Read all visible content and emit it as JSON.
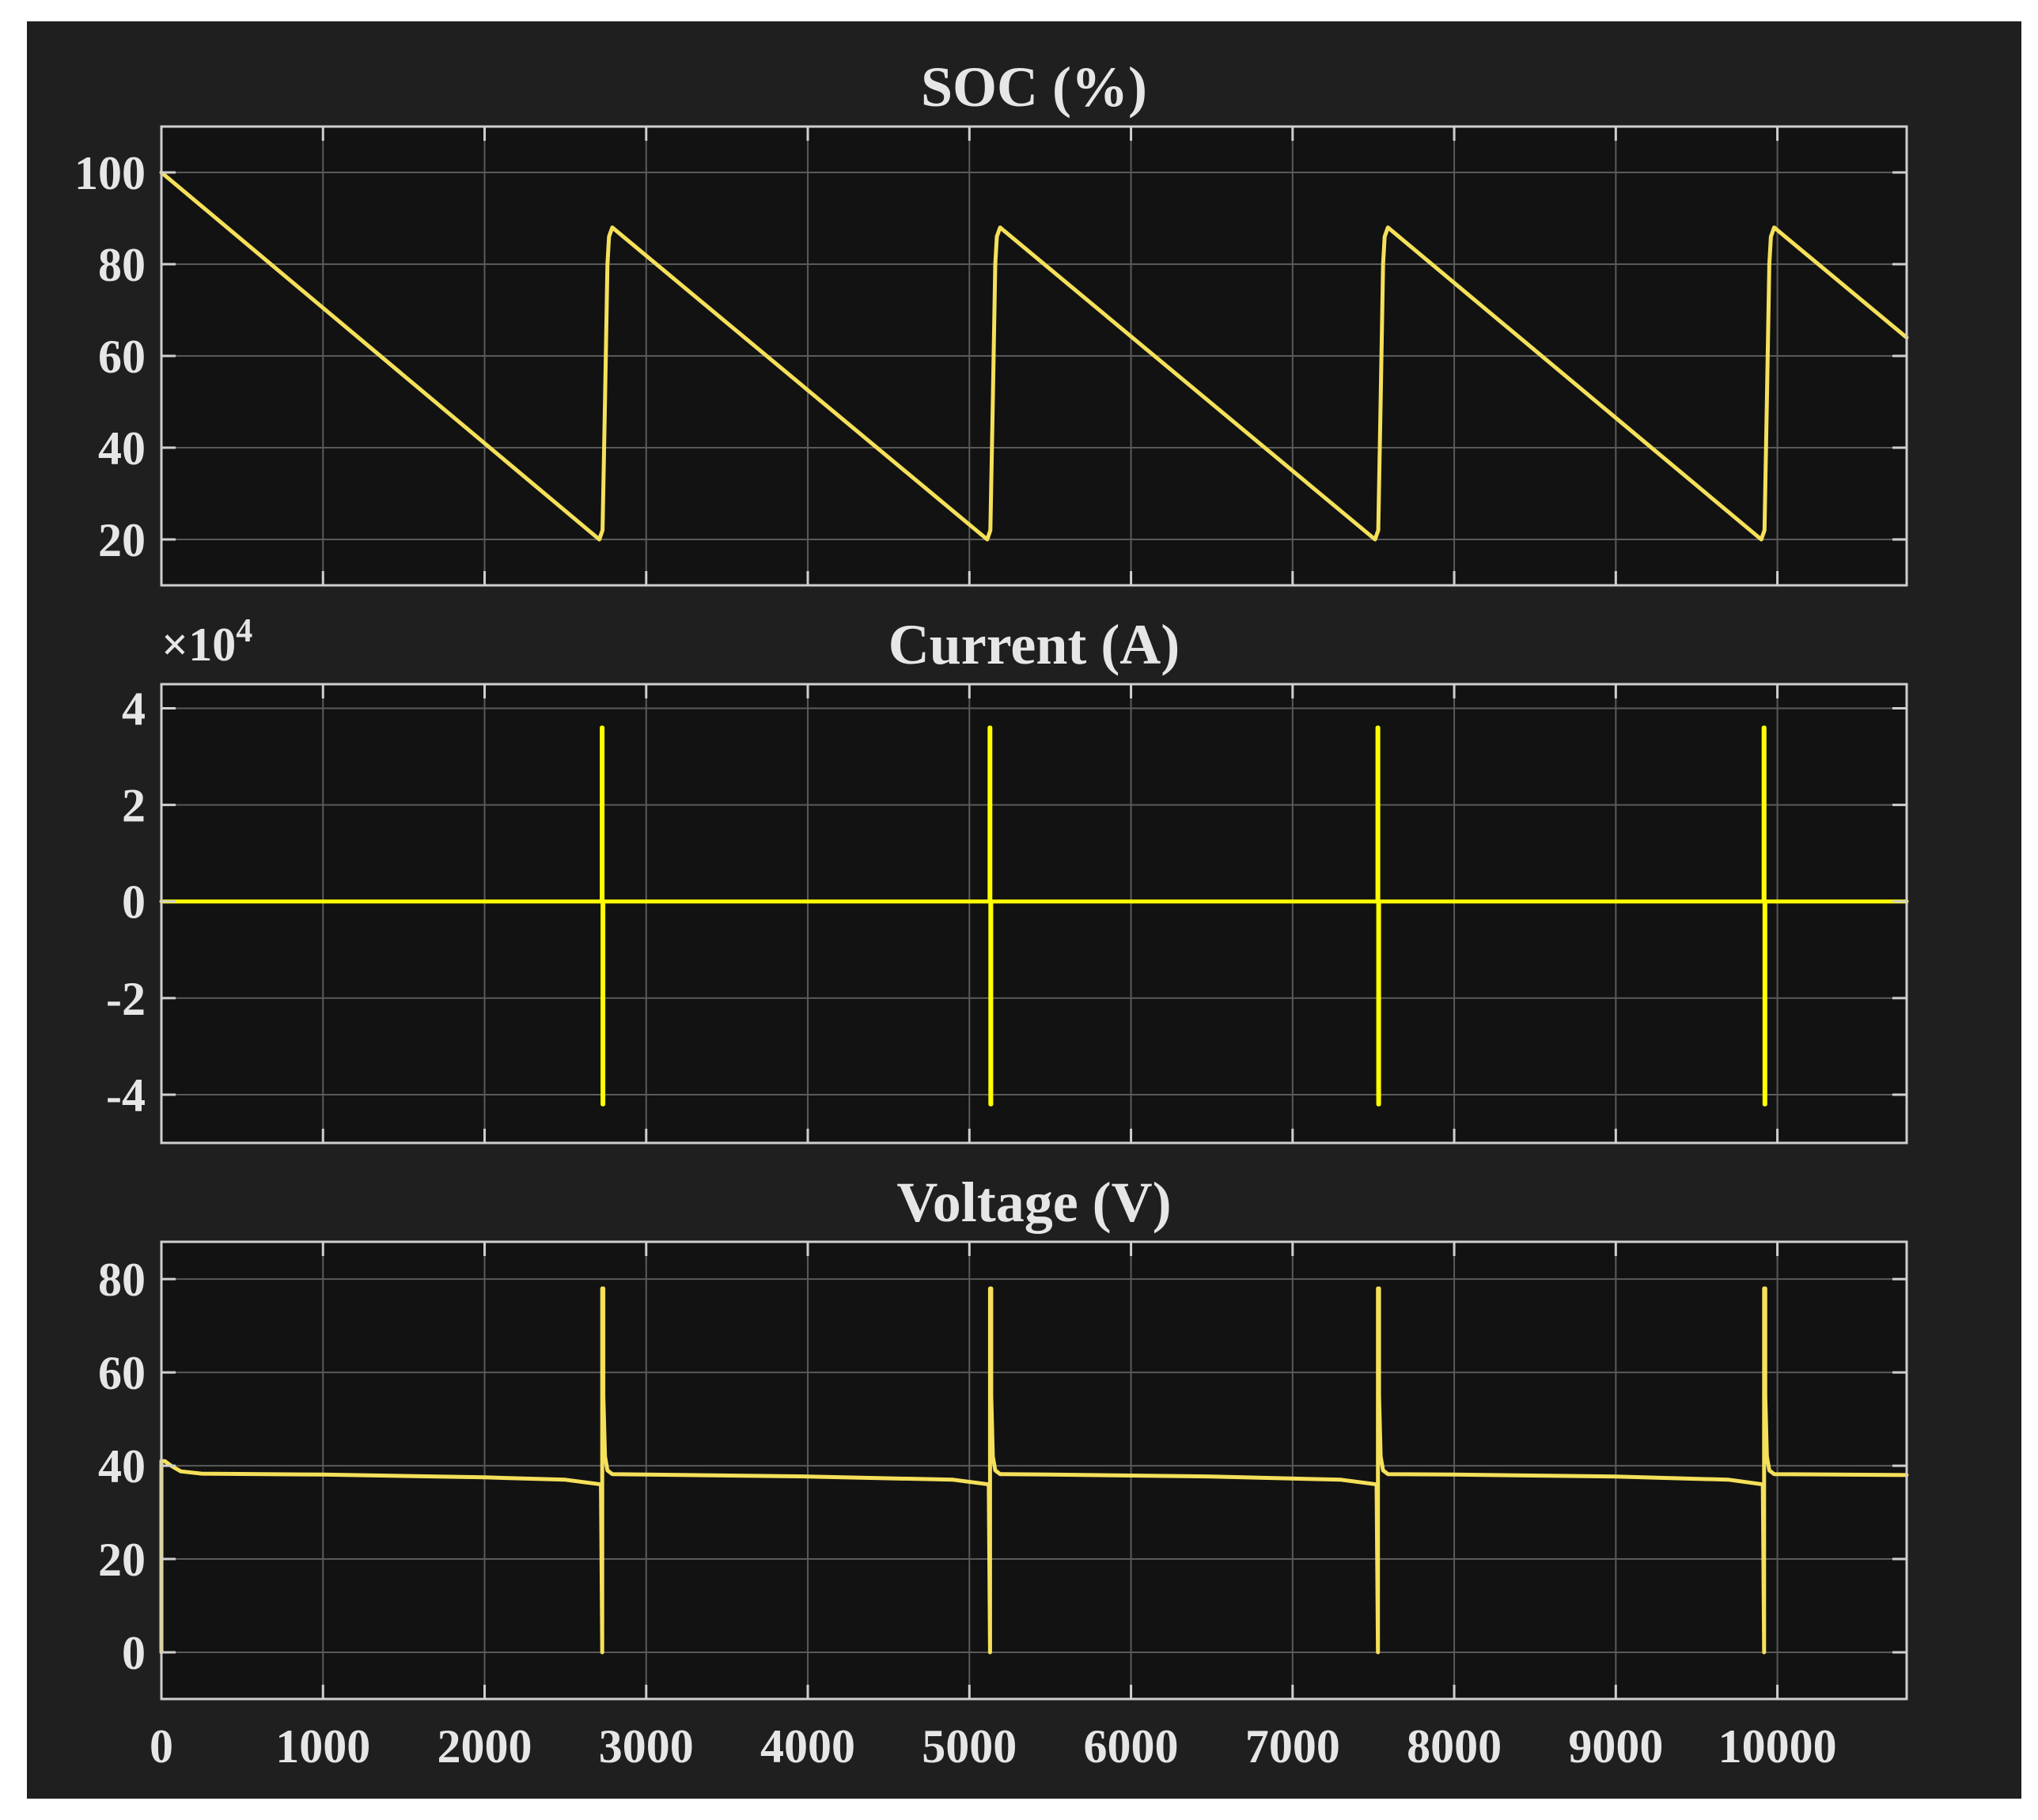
{
  "colors": {
    "figure_bg": "#1f1f1f",
    "axes_bg": "#121212",
    "grid": "#5a5a5a",
    "axis": "#cfcfcf",
    "text": "#e6e6e6",
    "soc_line": "#f5e05a",
    "current_line": "#ffff00",
    "voltage_line": "#f5e05a"
  },
  "chart_data": [
    {
      "type": "line",
      "title": "SOC (%)",
      "xlabel": "",
      "ylabel": "",
      "xlim": [
        0,
        10800
      ],
      "ylim": [
        10,
        110
      ],
      "xticks": [
        0,
        1000,
        2000,
        3000,
        4000,
        5000,
        6000,
        7000,
        8000,
        9000,
        10000
      ],
      "yticks": [
        20,
        40,
        60,
        80,
        100
      ],
      "ytick_labels": [
        "20",
        "40",
        "60",
        "80",
        "100"
      ],
      "show_xtick_labels": false,
      "grid": true,
      "series": [
        {
          "color": "#f5e05a",
          "x": [
            0,
            2710,
            2730,
            2745,
            2760,
            2770,
            2790,
            5110,
            5130,
            5145,
            5160,
            5170,
            5190,
            7510,
            7530,
            7545,
            7560,
            7570,
            7590,
            9900,
            9920,
            9935,
            9950,
            9960,
            9980,
            10800
          ],
          "y": [
            100,
            20,
            22,
            50,
            80,
            86,
            88,
            20,
            22,
            50,
            80,
            86,
            88,
            20,
            22,
            50,
            80,
            86,
            88,
            20,
            22,
            50,
            80,
            86,
            88,
            64
          ]
        }
      ]
    },
    {
      "type": "line",
      "title": "Current (A)",
      "xlabel": "",
      "ylabel": "",
      "exponent_label": "×10",
      "exponent_power": "4",
      "xlim": [
        0,
        10800
      ],
      "ylim": [
        -5,
        4.5
      ],
      "xticks": [
        0,
        1000,
        2000,
        3000,
        4000,
        5000,
        6000,
        7000,
        8000,
        9000,
        10000
      ],
      "yticks": [
        -4,
        -2,
        0,
        2,
        4
      ],
      "ytick_labels": [
        "-4",
        "-2",
        "0",
        "2",
        "4"
      ],
      "show_xtick_labels": false,
      "grid": true,
      "series": [
        {
          "color": "#ffff00",
          "x": [
            0,
            2725,
            2725,
            2730,
            2730,
            2735,
            2735,
            5125,
            5125,
            5130,
            5130,
            5135,
            5135,
            7525,
            7525,
            7530,
            7530,
            7535,
            7535,
            9915,
            9915,
            9920,
            9920,
            9925,
            9925,
            10800
          ],
          "y": [
            0,
            0,
            3.6,
            3.6,
            -4.2,
            -4.2,
            0,
            0,
            3.6,
            3.6,
            -4.2,
            -4.2,
            0,
            0,
            3.6,
            3.6,
            -4.2,
            -4.2,
            0,
            0,
            3.6,
            3.6,
            -4.2,
            -4.2,
            0,
            0
          ]
        }
      ]
    },
    {
      "type": "line",
      "title": "Voltage (V)",
      "xlabel": "",
      "ylabel": "",
      "xlim": [
        0,
        10800
      ],
      "ylim": [
        -10,
        88
      ],
      "xticks": [
        0,
        1000,
        2000,
        3000,
        4000,
        5000,
        6000,
        7000,
        8000,
        9000,
        10000
      ],
      "xtick_labels": [
        "0",
        "1000",
        "2000",
        "3000",
        "4000",
        "5000",
        "6000",
        "7000",
        "8000",
        "9000",
        "10000"
      ],
      "yticks": [
        0,
        20,
        40,
        60,
        80
      ],
      "ytick_labels": [
        "0",
        "20",
        "40",
        "60",
        "80"
      ],
      "show_xtick_labels": true,
      "grid": true,
      "series": [
        {
          "color": "#f5e05a",
          "x": [
            0,
            0,
            20,
            60,
            120,
            250,
            1000,
            2000,
            2500,
            2720,
            2728,
            2728,
            2735,
            2735,
            2745,
            2760,
            2790,
            3000,
            4000,
            4900,
            5120,
            5128,
            5128,
            5135,
            5135,
            5145,
            5160,
            5190,
            5500,
            6500,
            7300,
            7520,
            7528,
            7528,
            7535,
            7535,
            7545,
            7560,
            7590,
            8000,
            9000,
            9700,
            9910,
            9918,
            9918,
            9925,
            9925,
            9935,
            9950,
            9980,
            10800
          ],
          "y": [
            0,
            41,
            41,
            40,
            38.8,
            38.3,
            38.1,
            37.5,
            37,
            36,
            0,
            78,
            78,
            55,
            42,
            39,
            38.2,
            38.1,
            37.7,
            37,
            36,
            0,
            78,
            78,
            55,
            42,
            39,
            38.2,
            38.1,
            37.7,
            37,
            36,
            0,
            78,
            78,
            55,
            42,
            39,
            38.2,
            38.1,
            37.7,
            37,
            36,
            0,
            78,
            78,
            55,
            42,
            39,
            38.2,
            38
          ]
        }
      ]
    }
  ]
}
